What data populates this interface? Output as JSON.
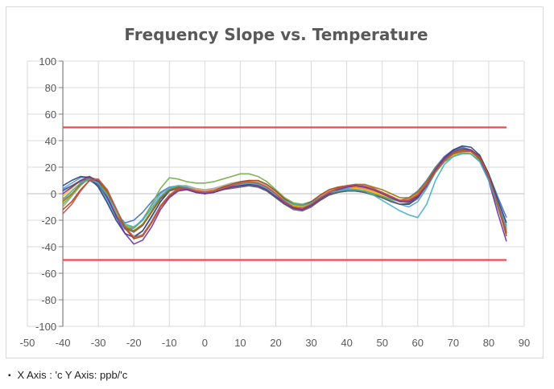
{
  "footnote": {
    "bullet": "▪",
    "text": "X Axis : 'c   Y Axis: ppb/'c"
  },
  "chart_data": {
    "type": "line",
    "title": "Frequency Slope vs. Temperature",
    "xlabel": "",
    "ylabel": "",
    "xlim": [
      -50,
      90
    ],
    "ylim": [
      -100,
      100
    ],
    "x_ticks": [
      -50,
      -40,
      -30,
      -20,
      -10,
      0,
      10,
      20,
      30,
      40,
      50,
      60,
      70,
      80,
      90
    ],
    "y_ticks": [
      -100,
      -80,
      -60,
      -40,
      -20,
      0,
      20,
      40,
      60,
      80,
      100
    ],
    "grid": true,
    "legend": "none",
    "limit_lines": [
      {
        "y": 50,
        "color": "#e84c4c"
      },
      {
        "y": -50,
        "color": "#e84c4c"
      }
    ],
    "x": [
      -40,
      -37.5,
      -35,
      -32.5,
      -30,
      -27.5,
      -25,
      -22.5,
      -20,
      -17.5,
      -15,
      -12.5,
      -10,
      -7.5,
      -5,
      -2.5,
      0,
      2.5,
      5,
      7.5,
      10,
      12.5,
      15,
      17.5,
      20,
      22.5,
      25,
      27.5,
      30,
      32.5,
      35,
      37.5,
      40,
      42.5,
      45,
      47.5,
      50,
      52.5,
      55,
      57.5,
      60,
      62.5,
      65,
      67.5,
      70,
      72.5,
      75,
      77.5,
      80,
      82.5,
      85
    ],
    "series": [
      {
        "color": "#4472c4",
        "values": [
          3,
          6,
          9,
          10,
          6,
          -4,
          -15,
          -22,
          -20,
          -14,
          -6,
          1,
          5,
          5,
          4,
          1,
          0,
          1,
          3,
          5,
          6,
          7,
          6,
          3,
          -2,
          -6,
          -9,
          -10,
          -8,
          -4,
          0,
          2,
          3,
          3,
          2,
          0,
          -2,
          -4,
          -5,
          -3,
          2,
          10,
          20,
          28,
          33,
          35,
          33,
          28,
          15,
          -2,
          -18
        ]
      },
      {
        "color": "#ed7d31",
        "values": [
          -5,
          2,
          8,
          12,
          10,
          1,
          -12,
          -24,
          -28,
          -24,
          -14,
          -4,
          3,
          6,
          5,
          3,
          2,
          3,
          5,
          6,
          7,
          8,
          8,
          5,
          0,
          -5,
          -8,
          -9,
          -6,
          -2,
          2,
          4,
          5,
          5,
          4,
          2,
          0,
          -3,
          -5,
          -4,
          0,
          8,
          18,
          26,
          30,
          32,
          32,
          26,
          12,
          -8,
          -28
        ]
      },
      {
        "color": "#a5a5a5",
        "values": [
          -10,
          -2,
          6,
          12,
          11,
          2,
          -12,
          -26,
          -32,
          -28,
          -18,
          -6,
          2,
          6,
          6,
          4,
          3,
          4,
          6,
          8,
          9,
          10,
          9,
          6,
          1,
          -4,
          -7,
          -8,
          -6,
          -2,
          1,
          3,
          4,
          4,
          3,
          1,
          -2,
          -5,
          -8,
          -8,
          -4,
          5,
          16,
          24,
          29,
          31,
          30,
          24,
          10,
          -10,
          -30
        ]
      },
      {
        "color": "#ffc000",
        "values": [
          -2,
          4,
          10,
          13,
          9,
          -1,
          -14,
          -25,
          -26,
          -20,
          -11,
          -2,
          4,
          6,
          5,
          2,
          1,
          2,
          4,
          6,
          8,
          9,
          8,
          5,
          0,
          -5,
          -9,
          -10,
          -7,
          -3,
          1,
          3,
          4,
          4,
          3,
          1,
          -1,
          -4,
          -6,
          -5,
          -1,
          7,
          17,
          25,
          29,
          31,
          31,
          27,
          14,
          -5,
          -25
        ]
      },
      {
        "color": "#5b9bd5",
        "values": [
          4,
          8,
          12,
          13,
          7,
          -5,
          -18,
          -27,
          -26,
          -19,
          -9,
          0,
          5,
          6,
          5,
          2,
          1,
          2,
          4,
          6,
          7,
          8,
          7,
          4,
          -1,
          -5,
          -8,
          -9,
          -7,
          -3,
          1,
          3,
          4,
          3,
          2,
          0,
          -2,
          -5,
          -8,
          -10,
          -6,
          4,
          16,
          25,
          30,
          33,
          32,
          27,
          12,
          -6,
          -24
        ]
      },
      {
        "color": "#70ad47",
        "values": [
          -8,
          -1,
          7,
          11,
          9,
          0,
          -13,
          -24,
          -26,
          -20,
          -8,
          4,
          12,
          11,
          9,
          8,
          8,
          9,
          11,
          13,
          15,
          15,
          13,
          9,
          3,
          -3,
          -7,
          -8,
          -6,
          -3,
          0,
          2,
          3,
          3,
          2,
          0,
          -2,
          -4,
          -6,
          -6,
          -2,
          6,
          16,
          24,
          28,
          31,
          30,
          25,
          11,
          -8,
          -27
        ]
      },
      {
        "color": "#264478",
        "values": [
          6,
          10,
          13,
          12,
          5,
          -7,
          -20,
          -30,
          -33,
          -28,
          -17,
          -6,
          2,
          5,
          4,
          1,
          0,
          1,
          3,
          5,
          6,
          6,
          5,
          2,
          -3,
          -8,
          -11,
          -12,
          -9,
          -5,
          -1,
          1,
          2,
          2,
          1,
          -1,
          -3,
          -6,
          -8,
          -8,
          -3,
          6,
          18,
          27,
          33,
          36,
          35,
          29,
          15,
          -4,
          -22
        ]
      },
      {
        "color": "#9e480e",
        "values": [
          -12,
          -6,
          3,
          10,
          10,
          2,
          -12,
          -26,
          -34,
          -32,
          -22,
          -10,
          -2,
          3,
          3,
          1,
          0,
          2,
          5,
          7,
          9,
          10,
          10,
          7,
          2,
          -4,
          -8,
          -9,
          -6,
          -1,
          3,
          5,
          6,
          6,
          5,
          3,
          1,
          -2,
          -5,
          -5,
          -1,
          7,
          18,
          26,
          31,
          33,
          33,
          28,
          14,
          -8,
          -32
        ]
      },
      {
        "color": "#636363",
        "values": [
          2,
          6,
          10,
          11,
          7,
          -3,
          -16,
          -26,
          -29,
          -24,
          -14,
          -4,
          2,
          4,
          3,
          1,
          0,
          1,
          3,
          4,
          5,
          6,
          5,
          2,
          -3,
          -8,
          -12,
          -13,
          -10,
          -5,
          -1,
          1,
          2,
          2,
          1,
          -1,
          -3,
          -6,
          -8,
          -7,
          -2,
          6,
          17,
          26,
          31,
          33,
          32,
          26,
          11,
          -9,
          -30
        ]
      },
      {
        "color": "#997300",
        "values": [
          -6,
          0,
          7,
          12,
          10,
          1,
          -13,
          -25,
          -28,
          -23,
          -13,
          -3,
          3,
          5,
          4,
          2,
          1,
          2,
          4,
          6,
          7,
          8,
          7,
          4,
          -1,
          -6,
          -10,
          -11,
          -8,
          -4,
          1,
          4,
          6,
          7,
          7,
          5,
          3,
          0,
          -3,
          -3,
          1,
          9,
          19,
          27,
          31,
          33,
          32,
          26,
          11,
          -9,
          -30
        ]
      },
      {
        "color": "#7030a0",
        "values": [
          0,
          5,
          10,
          13,
          9,
          -2,
          -17,
          -30,
          -38,
          -35,
          -25,
          -12,
          -3,
          2,
          3,
          1,
          0,
          1,
          3,
          5,
          6,
          7,
          6,
          3,
          -2,
          -7,
          -11,
          -12,
          -9,
          -4,
          0,
          3,
          5,
          6,
          5,
          3,
          0,
          -3,
          -6,
          -6,
          -2,
          7,
          18,
          27,
          32,
          34,
          33,
          27,
          10,
          -14,
          -36
        ]
      },
      {
        "color": "#43b0c6",
        "values": [
          -4,
          2,
          8,
          11,
          8,
          -1,
          -13,
          -23,
          -25,
          -20,
          -11,
          -2,
          4,
          6,
          5,
          2,
          1,
          2,
          4,
          6,
          7,
          8,
          7,
          4,
          -1,
          -5,
          -8,
          -9,
          -7,
          -3,
          1,
          2,
          3,
          3,
          2,
          -1,
          -5,
          -9,
          -13,
          -16,
          -18,
          -8,
          10,
          22,
          28,
          30,
          30,
          24,
          10,
          -8,
          -26
        ]
      },
      {
        "color": "#c0504d",
        "values": [
          -15,
          -8,
          2,
          10,
          11,
          3,
          -11,
          -25,
          -33,
          -31,
          -21,
          -9,
          -1,
          4,
          4,
          2,
          1,
          2,
          4,
          6,
          8,
          9,
          8,
          5,
          0,
          -6,
          -10,
          -11,
          -8,
          -3,
          1,
          4,
          6,
          7,
          6,
          4,
          1,
          -2,
          -5,
          -5,
          -1,
          7,
          17,
          25,
          30,
          32,
          32,
          27,
          13,
          -7,
          -29
        ]
      }
    ]
  }
}
